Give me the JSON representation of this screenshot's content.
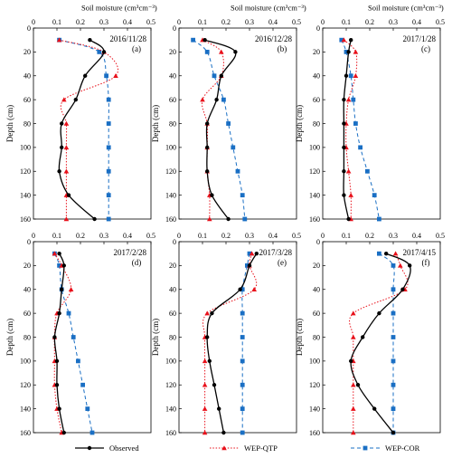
{
  "figure": {
    "top_axis_title": "Soil moisture  (cm³cm⁻³)",
    "y_axis_title": "Depth  (cm)"
  },
  "legend": [
    {
      "label": "Observed",
      "color": "#000000",
      "marker": "circle",
      "dash": "solid"
    },
    {
      "label": "WEP-QTP",
      "color": "#e8101a",
      "marker": "triangle",
      "dash": "dotted"
    },
    {
      "label": "WEP-COR",
      "color": "#1a6fc4",
      "marker": "square",
      "dash": "dashed"
    }
  ],
  "chart_data": [
    {
      "type": "line",
      "date": "2016/11/28",
      "panel_label": "(a)",
      "xlim": [
        0,
        0.5
      ],
      "x_ticks": [
        "0",
        "0.1",
        "0.2",
        "0.3",
        "0.4",
        "0.5"
      ],
      "x_tick_position": "top",
      "ylim": [
        0,
        160
      ],
      "y_ticks": [
        "0",
        "20",
        "40",
        "60",
        "80",
        "100",
        "120",
        "140",
        "160"
      ],
      "series": [
        {
          "name": "Observed",
          "points": [
            [
              0.24,
              10
            ],
            [
              0.3,
              20
            ],
            [
              0.22,
              40
            ],
            [
              0.18,
              60
            ],
            [
              0.12,
              80
            ],
            [
              0.12,
              100
            ],
            [
              0.11,
              120
            ],
            [
              0.15,
              140
            ],
            [
              0.26,
              160
            ]
          ]
        },
        {
          "name": "WEP-QTP",
          "points": [
            [
              0.11,
              10
            ],
            [
              0.3,
              20
            ],
            [
              0.35,
              40
            ],
            [
              0.13,
              60
            ],
            [
              0.14,
              80
            ],
            [
              0.14,
              100
            ],
            [
              0.14,
              120
            ],
            [
              0.14,
              140
            ],
            [
              0.14,
              160
            ]
          ]
        },
        {
          "name": "WEP-COR",
          "points": [
            [
              0.11,
              10
            ],
            [
              0.28,
              20
            ],
            [
              0.31,
              40
            ],
            [
              0.32,
              60
            ],
            [
              0.32,
              80
            ],
            [
              0.32,
              100
            ],
            [
              0.32,
              120
            ],
            [
              0.32,
              140
            ],
            [
              0.32,
              160
            ]
          ]
        }
      ]
    },
    {
      "type": "line",
      "date": "2016/12/28",
      "panel_label": "(b)",
      "xlim": [
        0,
        0.5
      ],
      "x_ticks": [
        "0",
        "0.1",
        "0.2",
        "0.3",
        "0.4",
        "0.5"
      ],
      "x_tick_position": "top",
      "ylim": [
        0,
        160
      ],
      "y_ticks": [
        "0",
        "20",
        "40",
        "60",
        "80",
        "100",
        "120",
        "140",
        "160"
      ],
      "series": [
        {
          "name": "Observed",
          "points": [
            [
              0.11,
              10
            ],
            [
              0.24,
              20
            ],
            [
              0.18,
              40
            ],
            [
              0.16,
              60
            ],
            [
              0.12,
              80
            ],
            [
              0.12,
              100
            ],
            [
              0.12,
              120
            ],
            [
              0.14,
              140
            ],
            [
              0.21,
              160
            ]
          ]
        },
        {
          "name": "WEP-QTP",
          "points": [
            [
              0.1,
              10
            ],
            [
              0.18,
              20
            ],
            [
              0.18,
              40
            ],
            [
              0.1,
              60
            ],
            [
              0.12,
              80
            ],
            [
              0.12,
              100
            ],
            [
              0.12,
              120
            ],
            [
              0.13,
              140
            ],
            [
              0.13,
              160
            ]
          ]
        },
        {
          "name": "WEP-COR",
          "points": [
            [
              0.06,
              10
            ],
            [
              0.12,
              20
            ],
            [
              0.15,
              40
            ],
            [
              0.19,
              60
            ],
            [
              0.21,
              80
            ],
            [
              0.23,
              100
            ],
            [
              0.25,
              120
            ],
            [
              0.27,
              140
            ],
            [
              0.28,
              160
            ]
          ]
        }
      ]
    },
    {
      "type": "line",
      "date": "2017/1/28",
      "panel_label": "(c)",
      "xlim": [
        0,
        0.5
      ],
      "x_ticks": [
        "0",
        "0.1",
        "0.2",
        "0.3",
        "0.4",
        "0.5"
      ],
      "x_tick_position": "top",
      "ylim": [
        0,
        160
      ],
      "y_ticks": [
        "0",
        "20",
        "40",
        "60",
        "80",
        "100",
        "120",
        "140",
        "160"
      ],
      "series": [
        {
          "name": "Observed",
          "points": [
            [
              0.12,
              10
            ],
            [
              0.11,
              20
            ],
            [
              0.1,
              40
            ],
            [
              0.09,
              60
            ],
            [
              0.09,
              80
            ],
            [
              0.09,
              100
            ],
            [
              0.09,
              120
            ],
            [
              0.09,
              140
            ],
            [
              0.11,
              160
            ]
          ]
        },
        {
          "name": "WEP-QTP",
          "points": [
            [
              0.09,
              10
            ],
            [
              0.14,
              20
            ],
            [
              0.14,
              40
            ],
            [
              0.11,
              60
            ],
            [
              0.1,
              80
            ],
            [
              0.1,
              100
            ],
            [
              0.11,
              120
            ],
            [
              0.12,
              140
            ],
            [
              0.12,
              160
            ]
          ]
        },
        {
          "name": "WEP-COR",
          "points": [
            [
              0.08,
              10
            ],
            [
              0.1,
              20
            ],
            [
              0.12,
              40
            ],
            [
              0.13,
              60
            ],
            [
              0.14,
              80
            ],
            [
              0.16,
              100
            ],
            [
              0.19,
              120
            ],
            [
              0.22,
              140
            ],
            [
              0.24,
              160
            ]
          ]
        }
      ]
    },
    {
      "type": "line",
      "date": "2017/2/28",
      "panel_label": "(d)",
      "xlim": [
        0,
        0.5
      ],
      "x_ticks": [
        "0",
        "0.1",
        "0.2",
        "0.3",
        "0.4",
        "0.5"
      ],
      "x_tick_position": "top",
      "ylim": [
        0,
        160
      ],
      "y_ticks": [
        "0",
        "20",
        "40",
        "60",
        "80",
        "100",
        "120",
        "140",
        "160"
      ],
      "series": [
        {
          "name": "Observed",
          "points": [
            [
              0.11,
              10
            ],
            [
              0.13,
              20
            ],
            [
              0.12,
              40
            ],
            [
              0.11,
              60
            ],
            [
              0.09,
              80
            ],
            [
              0.1,
              100
            ],
            [
              0.1,
              120
            ],
            [
              0.11,
              140
            ],
            [
              0.13,
              160
            ]
          ]
        },
        {
          "name": "WEP-QTP",
          "points": [
            [
              0.09,
              10
            ],
            [
              0.12,
              20
            ],
            [
              0.16,
              40
            ],
            [
              0.1,
              60
            ],
            [
              0.09,
              80
            ],
            [
              0.09,
              100
            ],
            [
              0.09,
              120
            ],
            [
              0.1,
              140
            ],
            [
              0.12,
              160
            ]
          ]
        },
        {
          "name": "WEP-COR",
          "points": [
            [
              0.09,
              10
            ],
            [
              0.11,
              20
            ],
            [
              0.12,
              40
            ],
            [
              0.15,
              60
            ],
            [
              0.17,
              80
            ],
            [
              0.19,
              100
            ],
            [
              0.21,
              120
            ],
            [
              0.23,
              140
            ],
            [
              0.25,
              160
            ]
          ]
        }
      ]
    },
    {
      "type": "line",
      "date": "2017/3/28",
      "panel_label": "(e)",
      "xlim": [
        0,
        0.5
      ],
      "x_ticks": [
        "0",
        "0.1",
        "0.2",
        "0.3",
        "0.4",
        "0.5"
      ],
      "x_tick_position": "top",
      "ylim": [
        0,
        160
      ],
      "y_ticks": [
        "0",
        "20",
        "40",
        "60",
        "80",
        "100",
        "120",
        "140",
        "160"
      ],
      "series": [
        {
          "name": "Observed",
          "points": [
            [
              0.33,
              10
            ],
            [
              0.3,
              20
            ],
            [
              0.26,
              40
            ],
            [
              0.14,
              60
            ],
            [
              0.12,
              80
            ],
            [
              0.13,
              100
            ],
            [
              0.15,
              120
            ],
            [
              0.17,
              140
            ],
            [
              0.19,
              160
            ]
          ]
        },
        {
          "name": "WEP-QTP",
          "points": [
            [
              0.31,
              10
            ],
            [
              0.3,
              20
            ],
            [
              0.32,
              40
            ],
            [
              0.12,
              60
            ],
            [
              0.11,
              80
            ],
            [
              0.11,
              100
            ],
            [
              0.11,
              120
            ],
            [
              0.11,
              140
            ],
            [
              0.11,
              160
            ]
          ]
        },
        {
          "name": "WEP-COR",
          "points": [
            [
              0.3,
              10
            ],
            [
              0.29,
              20
            ],
            [
              0.27,
              40
            ],
            [
              0.27,
              60
            ],
            [
              0.27,
              80
            ],
            [
              0.27,
              100
            ],
            [
              0.27,
              120
            ],
            [
              0.27,
              140
            ],
            [
              0.27,
              160
            ]
          ]
        }
      ]
    },
    {
      "type": "line",
      "date": "2017/4/15",
      "panel_label": "(f)",
      "xlim": [
        0,
        0.5
      ],
      "x_ticks": [
        "0",
        "0.1",
        "0.2",
        "0.3",
        "0.4",
        "0.5"
      ],
      "x_tick_position": "top",
      "ylim": [
        0,
        160
      ],
      "y_ticks": [
        "0",
        "20",
        "40",
        "60",
        "80",
        "100",
        "120",
        "140",
        "160"
      ],
      "series": [
        {
          "name": "Observed",
          "points": [
            [
              0.27,
              10
            ],
            [
              0.37,
              20
            ],
            [
              0.34,
              40
            ],
            [
              0.24,
              60
            ],
            [
              0.17,
              80
            ],
            [
              0.12,
              100
            ],
            [
              0.15,
              120
            ],
            [
              0.22,
              140
            ],
            [
              0.3,
              160
            ]
          ]
        },
        {
          "name": "WEP-QTP",
          "points": [
            [
              0.31,
              10
            ],
            [
              0.33,
              20
            ],
            [
              0.35,
              40
            ],
            [
              0.13,
              60
            ],
            [
              0.13,
              80
            ],
            [
              0.13,
              100
            ],
            [
              0.13,
              120
            ],
            [
              0.13,
              140
            ],
            [
              0.13,
              160
            ]
          ]
        },
        {
          "name": "WEP-COR",
          "points": [
            [
              0.24,
              10
            ],
            [
              0.3,
              20
            ],
            [
              0.3,
              40
            ],
            [
              0.3,
              60
            ],
            [
              0.3,
              80
            ],
            [
              0.3,
              100
            ],
            [
              0.3,
              120
            ],
            [
              0.3,
              140
            ],
            [
              0.3,
              160
            ]
          ]
        }
      ]
    }
  ]
}
